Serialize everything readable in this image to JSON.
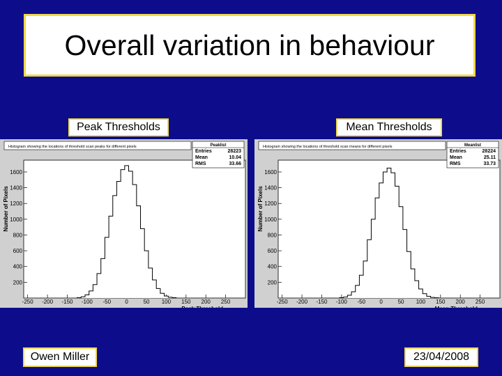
{
  "slide": {
    "title": "Overall variation in behaviour",
    "peak_label": "Peak Thresholds",
    "mean_label": "Mean Thresholds",
    "author": "Owen Miller",
    "date": "23/04/2008"
  },
  "colors": {
    "background": "#0d0d8c",
    "box_border": "#f0d84a",
    "plot_frame": "#d0d0d0"
  },
  "chart_data": [
    {
      "type": "histogram",
      "title": "Histogram showing the locations of threshold scan peaks for different pixels",
      "xlabel": "Peak Threshold",
      "ylabel": "Number of Pixels",
      "xlim": [
        -260,
        300
      ],
      "ylim": [
        0,
        1750
      ],
      "xticks": [
        "-250",
        "-200",
        "-150",
        "-100",
        "-50",
        "0",
        "50",
        "100",
        "150",
        "200",
        "250"
      ],
      "yticks": [
        "200",
        "400",
        "600",
        "800",
        "1000",
        "1200",
        "1400",
        "1600"
      ],
      "stats": {
        "name": "Peaklist",
        "rows": [
          {
            "label": "Entries",
            "value": "28223"
          },
          {
            "label": "Mean",
            "value": "10.04"
          },
          {
            "label": "RMS",
            "value": "33.66"
          }
        ]
      },
      "x": [
        -120,
        -110,
        -100,
        -90,
        -80,
        -70,
        -60,
        -50,
        -40,
        -30,
        -20,
        -10,
        0,
        10,
        20,
        30,
        40,
        50,
        60,
        70,
        80,
        90,
        100,
        110,
        120
      ],
      "values": [
        5,
        15,
        40,
        90,
        170,
        310,
        500,
        770,
        1040,
        1300,
        1480,
        1630,
        1680,
        1610,
        1440,
        1170,
        880,
        600,
        380,
        230,
        120,
        60,
        25,
        10,
        4
      ]
    },
    {
      "type": "histogram",
      "title": "Histogram showing the locations of threshold scan means for different pixels",
      "xlabel": "Mean Threshold",
      "ylabel": "Number of Pixels",
      "xlim": [
        -260,
        300
      ],
      "ylim": [
        0,
        1750
      ],
      "xticks": [
        "-250",
        "-200",
        "-150",
        "-100",
        "-50",
        "0",
        "50",
        "100",
        "150",
        "200",
        "250"
      ],
      "yticks": [
        "200",
        "400",
        "600",
        "800",
        "1000",
        "1200",
        "1400",
        "1600"
      ],
      "stats": {
        "name": "Meanlist",
        "rows": [
          {
            "label": "Entries",
            "value": "28224"
          },
          {
            "label": "Mean",
            "value": "25.11"
          },
          {
            "label": "RMS",
            "value": "33.73"
          }
        ]
      },
      "x": [
        -100,
        -90,
        -80,
        -70,
        -60,
        -50,
        -40,
        -30,
        -20,
        -10,
        0,
        10,
        20,
        30,
        40,
        50,
        60,
        70,
        80,
        90,
        100,
        110,
        120,
        130,
        140
      ],
      "values": [
        4,
        12,
        35,
        80,
        160,
        290,
        470,
        740,
        1000,
        1270,
        1460,
        1600,
        1650,
        1590,
        1420,
        1160,
        870,
        590,
        370,
        220,
        115,
        55,
        22,
        8,
        3
      ]
    }
  ]
}
